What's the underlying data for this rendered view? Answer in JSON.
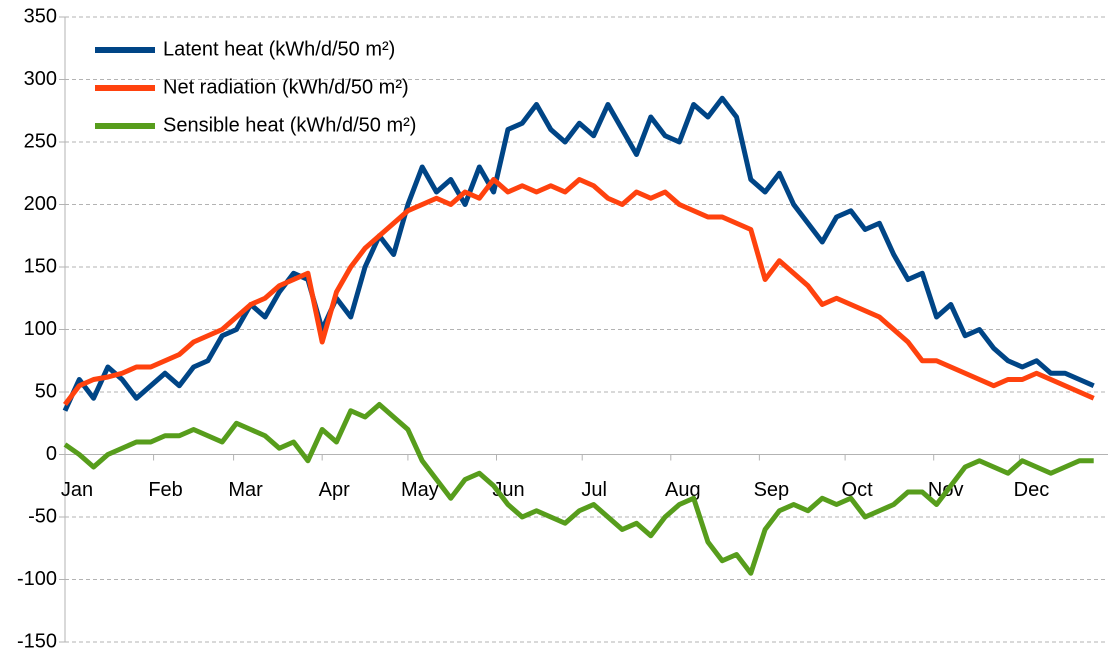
{
  "chart_data": {
    "type": "line",
    "x": [
      1,
      6,
      11,
      16,
      21,
      26,
      31,
      36,
      41,
      46,
      51,
      56,
      61,
      66,
      71,
      76,
      81,
      86,
      91,
      96,
      101,
      106,
      111,
      116,
      121,
      126,
      131,
      136,
      141,
      146,
      151,
      156,
      161,
      166,
      171,
      176,
      181,
      186,
      191,
      196,
      201,
      206,
      211,
      216,
      221,
      226,
      231,
      236,
      241,
      246,
      251,
      256,
      261,
      266,
      271,
      276,
      281,
      286,
      291,
      296,
      301,
      306,
      311,
      316,
      321,
      326,
      331,
      336,
      341,
      346,
      351,
      356,
      361
    ],
    "series": [
      {
        "name": "Latent heat (kWh/d/50 m²)",
        "color": "#004586",
        "values": [
          35,
          60,
          45,
          70,
          60,
          45,
          55,
          65,
          55,
          70,
          75,
          95,
          100,
          120,
          110,
          130,
          145,
          140,
          100,
          125,
          110,
          150,
          175,
          160,
          200,
          230,
          210,
          220,
          200,
          230,
          210,
          260,
          265,
          280,
          260,
          250,
          265,
          255,
          280,
          260,
          240,
          270,
          255,
          250,
          280,
          270,
          285,
          270,
          220,
          210,
          225,
          200,
          185,
          170,
          190,
          195,
          180,
          185,
          160,
          140,
          145,
          110,
          120,
          95,
          100,
          85,
          75,
          70,
          75,
          65,
          65,
          60,
          55
        ]
      },
      {
        "name": "Net radiation (kWh/d/50 m²)",
        "color": "#ff420e",
        "values": [
          40,
          55,
          60,
          62,
          65,
          70,
          70,
          75,
          80,
          90,
          95,
          100,
          110,
          120,
          125,
          135,
          140,
          145,
          90,
          130,
          150,
          165,
          175,
          185,
          195,
          200,
          205,
          200,
          210,
          205,
          220,
          210,
          215,
          210,
          215,
          210,
          220,
          215,
          205,
          200,
          210,
          205,
          210,
          200,
          195,
          190,
          190,
          185,
          180,
          140,
          155,
          145,
          135,
          120,
          125,
          120,
          115,
          110,
          100,
          90,
          75,
          75,
          70,
          65,
          60,
          55,
          60,
          60,
          65,
          60,
          55,
          50,
          45
        ]
      },
      {
        "name": "Sensible heat (kWh/d/50 m²)",
        "color": "#579d1c",
        "values": [
          8,
          0,
          -10,
          0,
          5,
          10,
          10,
          15,
          15,
          20,
          15,
          10,
          25,
          20,
          15,
          5,
          10,
          -5,
          20,
          10,
          35,
          30,
          40,
          30,
          20,
          -5,
          -20,
          -35,
          -20,
          -15,
          -25,
          -40,
          -50,
          -45,
          -50,
          -55,
          -45,
          -40,
          -50,
          -60,
          -55,
          -65,
          -50,
          -40,
          -35,
          -70,
          -85,
          -80,
          -95,
          -60,
          -45,
          -40,
          -45,
          -35,
          -40,
          -35,
          -50,
          -45,
          -40,
          -30,
          -30,
          -40,
          -25,
          -10,
          -5,
          -10,
          -15,
          -5,
          -10,
          -15,
          -10,
          -5,
          -5
        ]
      }
    ],
    "xlim": [
      1,
      366
    ],
    "xticks": [
      {
        "value": 1,
        "label": "Jan"
      },
      {
        "value": 32,
        "label": "Feb"
      },
      {
        "value": 60,
        "label": "Mar"
      },
      {
        "value": 91,
        "label": "Apr"
      },
      {
        "value": 121,
        "label": "May"
      },
      {
        "value": 152,
        "label": "Jun"
      },
      {
        "value": 182,
        "label": "Jul"
      },
      {
        "value": 213,
        "label": "Aug"
      },
      {
        "value": 244,
        "label": "Sep"
      },
      {
        "value": 274,
        "label": "Oct"
      },
      {
        "value": 305,
        "label": "Nov"
      },
      {
        "value": 335,
        "label": "Dec"
      }
    ],
    "ylim": [
      -150,
      350
    ],
    "yticks": [
      -150,
      -100,
      -50,
      0,
      50,
      100,
      150,
      200,
      250,
      300,
      350
    ],
    "grid": true,
    "legend": "top-left"
  }
}
